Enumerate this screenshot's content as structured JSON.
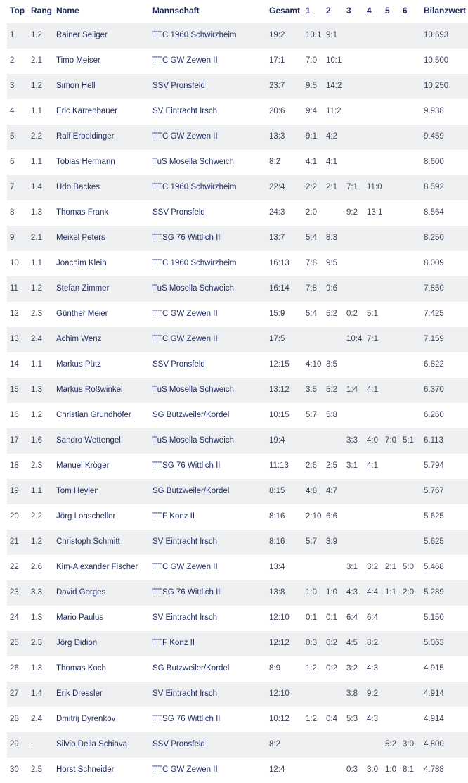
{
  "table": {
    "headers": [
      "Top",
      "Rang",
      "Name",
      "Mannschaft",
      "Gesamt",
      "1",
      "2",
      "3",
      "4",
      "5",
      "6",
      "Bilanzwert"
    ],
    "rows": [
      [
        "1",
        "1.2",
        "Rainer Seliger",
        "TTC 1960 Schwirzheim",
        "19:2",
        "10:1",
        "9:1",
        "",
        "",
        "",
        "",
        "10.693"
      ],
      [
        "2",
        "2.1",
        "Timo Meiser",
        "TTC GW Zewen II",
        "17:1",
        "7:0",
        "10:1",
        "",
        "",
        "",
        "",
        "10.500"
      ],
      [
        "3",
        "1.2",
        "Simon Hell",
        "SSV Pronsfeld",
        "23:7",
        "9:5",
        "14:2",
        "",
        "",
        "",
        "",
        "10.250"
      ],
      [
        "4",
        "1.1",
        "Eric Karrenbauer",
        "SV Eintracht Irsch",
        "20:6",
        "9:4",
        "11:2",
        "",
        "",
        "",
        "",
        "9.938"
      ],
      [
        "5",
        "2.2",
        "Ralf Erbeldinger",
        "TTC GW Zewen II",
        "13:3",
        "9:1",
        "4:2",
        "",
        "",
        "",
        "",
        "9.459"
      ],
      [
        "6",
        "1.1",
        "Tobias Hermann",
        "TuS Mosella Schweich",
        "8:2",
        "4:1",
        "4:1",
        "",
        "",
        "",
        "",
        "8.600"
      ],
      [
        "7",
        "1.4",
        "Udo Backes",
        "TTC 1960 Schwirzheim",
        "22:4",
        "2:2",
        "2:1",
        "7:1",
        "11:0",
        "",
        "",
        "8.592"
      ],
      [
        "8",
        "1.3",
        "Thomas Frank",
        "SSV Pronsfeld",
        "24:3",
        "2:0",
        "",
        "9:2",
        "13:1",
        "",
        "",
        "8.564"
      ],
      [
        "9",
        "2.1",
        "Meikel Peters",
        "TTSG 76 Wittlich II",
        "13:7",
        "5:4",
        "8:3",
        "",
        "",
        "",
        "",
        "8.250"
      ],
      [
        "10",
        "1.1",
        "Joachim Klein",
        "TTC 1960 Schwirzheim",
        "16:13",
        "7:8",
        "9:5",
        "",
        "",
        "",
        "",
        "8.009"
      ],
      [
        "11",
        "1.2",
        "Stefan Zimmer",
        "TuS Mosella Schweich",
        "16:14",
        "7:8",
        "9:6",
        "",
        "",
        "",
        "",
        "7.850"
      ],
      [
        "12",
        "2.3",
        "Günther Meier",
        "TTC GW Zewen II",
        "15:9",
        "5:4",
        "5:2",
        "0:2",
        "5:1",
        "",
        "",
        "7.425"
      ],
      [
        "13",
        "2.4",
        "Achim Wenz",
        "TTC GW Zewen II",
        "17:5",
        "",
        "",
        "10:4",
        "7:1",
        "",
        "",
        "7.159"
      ],
      [
        "14",
        "1.1",
        "Markus Pütz",
        "SSV Pronsfeld",
        "12:15",
        "4:10",
        "8:5",
        "",
        "",
        "",
        "",
        "6.822"
      ],
      [
        "15",
        "1.3",
        "Markus Roßwinkel",
        "TuS Mosella Schweich",
        "13:12",
        "3:5",
        "5:2",
        "1:4",
        "4:1",
        "",
        "",
        "6.370"
      ],
      [
        "16",
        "1.2",
        "Christian Grundhöfer",
        "SG Butzweiler/Kordel",
        "10:15",
        "5:7",
        "5:8",
        "",
        "",
        "",
        "",
        "6.260"
      ],
      [
        "17",
        "1.6",
        "Sandro Wettengel",
        "TuS Mosella Schweich",
        "19:4",
        "",
        "",
        "3:3",
        "4:0",
        "7:0",
        "5:1",
        "6.113"
      ],
      [
        "18",
        "2.3",
        "Manuel Kröger",
        "TTSG 76 Wittlich II",
        "11:13",
        "2:6",
        "2:5",
        "3:1",
        "4:1",
        "",
        "",
        "5.794"
      ],
      [
        "19",
        "1.1",
        "Tom Heylen",
        "SG Butzweiler/Kordel",
        "8:15",
        "4:8",
        "4:7",
        "",
        "",
        "",
        "",
        "5.767"
      ],
      [
        "20",
        "2.2",
        "Jörg Lohscheller",
        "TTF Konz II",
        "8:16",
        "2:10",
        "6:6",
        "",
        "",
        "",
        "",
        "5.625"
      ],
      [
        "21",
        "1.2",
        "Christoph Schmitt",
        "SV Eintracht Irsch",
        "8:16",
        "5:7",
        "3:9",
        "",
        "",
        "",
        "",
        "5.625"
      ],
      [
        "22",
        "2.6",
        "Kim-Alexander Fischer",
        "TTC GW Zewen II",
        "13:4",
        "",
        "",
        "3:1",
        "3:2",
        "2:1",
        "5:0",
        "5.468"
      ],
      [
        "23",
        "3.3",
        "David Gorges",
        "TTSG 76 Wittlich II",
        "13:8",
        "1:0",
        "1:0",
        "4:3",
        "4:4",
        "1:1",
        "2:0",
        "5.289"
      ],
      [
        "24",
        "1.3",
        "Mario Paulus",
        "SV Eintracht Irsch",
        "12:10",
        "0:1",
        "0:1",
        "6:4",
        "6:4",
        "",
        "",
        "5.150"
      ],
      [
        "25",
        "2.3",
        "Jörg Didion",
        "TTF Konz II",
        "12:12",
        "0:3",
        "0:2",
        "4:5",
        "8:2",
        "",
        "",
        "5.063"
      ],
      [
        "26",
        "1.3",
        "Thomas Koch",
        "SG Butzweiler/Kordel",
        "8:9",
        "1:2",
        "0:2",
        "3:2",
        "4:3",
        "",
        "",
        "4.915"
      ],
      [
        "27",
        "1.4",
        "Erik Dressler",
        "SV Eintracht Irsch",
        "12:10",
        "",
        "",
        "3:8",
        "9:2",
        "",
        "",
        "4.914"
      ],
      [
        "28",
        "2.4",
        "Dmitrij Dyrenkov",
        "TTSG 76 Wittlich II",
        "10:12",
        "1:2",
        "0:4",
        "5:3",
        "4:3",
        "",
        "",
        "4.914"
      ],
      [
        "29",
        ".",
        "Silvio Della Schiava",
        "SSV Pronsfeld",
        "8:2",
        "",
        "",
        "",
        "",
        "5:2",
        "3:0",
        "4.800"
      ],
      [
        "30",
        "2.5",
        "Horst Schneider",
        "TTC GW Zewen II",
        "12:4",
        "",
        "",
        "0:3",
        "3:0",
        "1:0",
        "8:1",
        "4.788"
      ]
    ]
  }
}
